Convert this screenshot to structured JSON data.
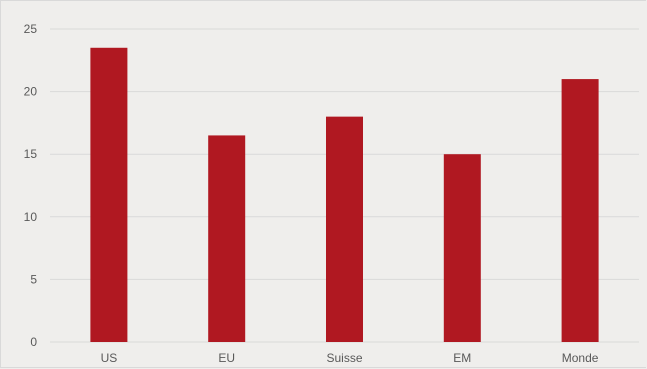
{
  "chart_data": {
    "type": "bar",
    "categories": [
      "US",
      "EU",
      "Suisse",
      "EM",
      "Monde"
    ],
    "values": [
      23.5,
      16.5,
      18,
      15,
      21
    ],
    "ylim": [
      0,
      25
    ],
    "yticks": [
      0,
      5,
      10,
      15,
      20,
      25
    ],
    "grid": true,
    "legend": "none",
    "title": "",
    "xlabel": "",
    "ylabel": "",
    "colors": {
      "bar": "#b01821",
      "grid": "#d9d9d9",
      "axis": "#d9d9d9",
      "tick_text": "#595959",
      "background": "#efeeec"
    }
  }
}
